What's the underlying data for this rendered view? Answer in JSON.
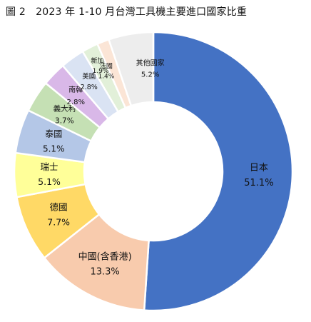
{
  "chart_data": {
    "type": "donut",
    "title": "圖 2　2023 年 1-10 月台灣工具機主要進口國家比重",
    "unit": "%",
    "slices": [
      {
        "label": "日本",
        "value": 51.1,
        "value_text": "51.1%",
        "color": "#4472C4"
      },
      {
        "label": "中國(含香港)",
        "value": 13.3,
        "value_text": "13.3%",
        "color": "#F8CBAD"
      },
      {
        "label": "德國",
        "value": 7.7,
        "value_text": "7.7%",
        "color": "#FFD966"
      },
      {
        "label": "瑞士",
        "value": 5.1,
        "value_text": "5.1%",
        "color": "#FFFF99"
      },
      {
        "label": "泰國",
        "value": 5.1,
        "value_text": "5.1%",
        "color": "#B4C7E7"
      },
      {
        "label": "義大利",
        "value": 3.7,
        "value_text": "3.7%",
        "color": "#C5E0B4"
      },
      {
        "label": "南韓",
        "value": 2.8,
        "value_text": "2.8%",
        "color": "#D9B8E8"
      },
      {
        "label": "美國",
        "value": 2.8,
        "value_text": "2.8%",
        "color": "#DAE3F3"
      },
      {
        "label": "新加坡",
        "value": 1.9,
        "value_text": "1.9%",
        "color": "#E2F0D9"
      },
      {
        "label": "法國",
        "value": 1.4,
        "value_text": "1.4%",
        "color": "#FBE5D6"
      },
      {
        "label": "其他國家",
        "value": 5.2,
        "value_text": "5.2%",
        "color": "#EDEDED"
      }
    ]
  }
}
